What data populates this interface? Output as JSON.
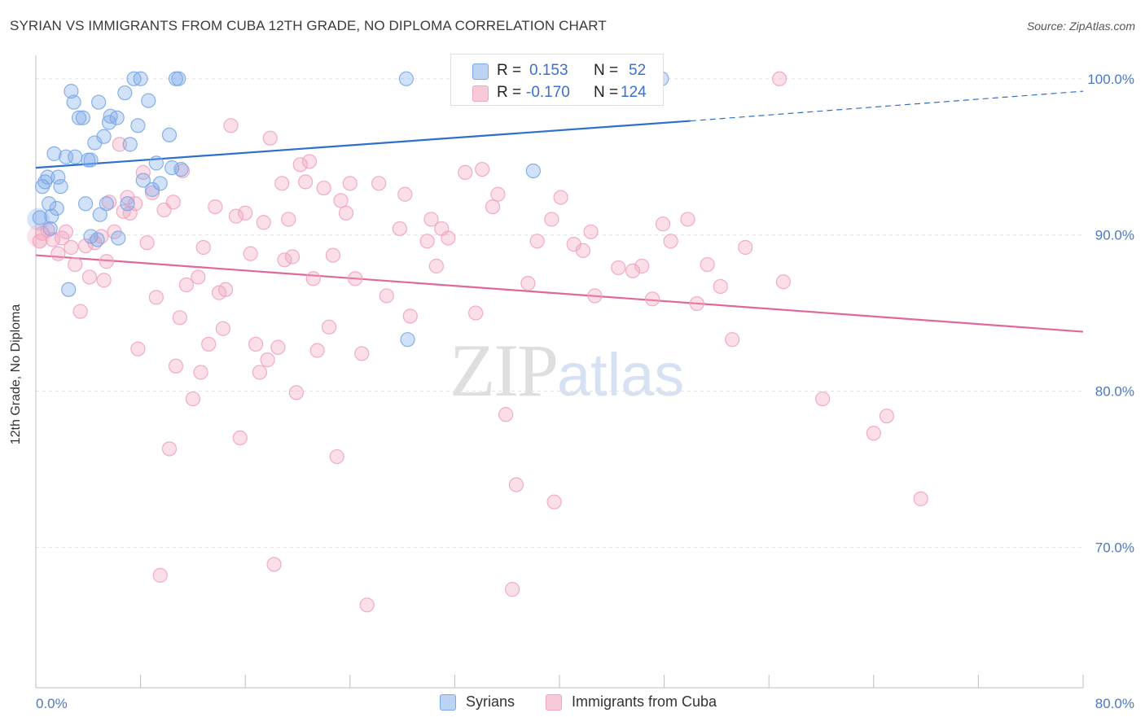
{
  "title": "SYRIAN VS IMMIGRANTS FROM CUBA 12TH GRADE, NO DIPLOMA CORRELATION CHART",
  "source": "Source: ZipAtlas.com",
  "watermark": {
    "zip": "ZIP",
    "atlas": "atlas"
  },
  "stats": {
    "row1": {
      "r_label": "R =",
      "r_value": "0.153",
      "n_label": "N =",
      "n_value": "52"
    },
    "row2": {
      "r_label": "R =",
      "r_value": "-0.170",
      "n_label": "N =",
      "n_value": "124"
    }
  },
  "legend": {
    "series1": "Syrians",
    "series2": "Immigrants from Cuba"
  },
  "chart_data": {
    "type": "scatter",
    "title": "SYRIAN VS IMMIGRANTS FROM CUBA 12TH GRADE, NO DIPLOMA CORRELATION CHART",
    "xlabel": "",
    "ylabel": "12th Grade, No Diploma",
    "xlim": [
      0,
      80
    ],
    "ylim": [
      61,
      101.5
    ],
    "x_tick_labels": [
      "0.0%",
      "80.0%"
    ],
    "y_ticks": [
      70,
      80,
      90,
      100
    ],
    "y_tick_labels": [
      "70.0%",
      "80.0%",
      "90.0%",
      "100.0%"
    ],
    "grid": true,
    "legend_position": "bottom-center",
    "colors": {
      "syrians": "#7aa8e8",
      "cuba": "#f2a3bd",
      "syrians_line": "#2f6fcc",
      "cuba_line": "#e0679a"
    },
    "series": [
      {
        "name": "Syrians",
        "trend": {
          "x0": 0,
          "y0": 94.3,
          "x1": 50,
          "y1": 97.3,
          "dashed_to": 80,
          "dashed_y": 99.2
        },
        "points": [
          [
            0.3,
            91.1
          ],
          [
            0.5,
            93.1
          ],
          [
            0.7,
            93.4
          ],
          [
            0.9,
            93.7
          ],
          [
            1.0,
            92.0
          ],
          [
            1.2,
            91.2
          ],
          [
            1.4,
            95.2
          ],
          [
            1.6,
            91.7
          ],
          [
            1.7,
            93.7
          ],
          [
            1.9,
            93.1
          ],
          [
            2.3,
            95.0
          ],
          [
            2.7,
            99.2
          ],
          [
            2.9,
            98.5
          ],
          [
            3.0,
            95.0
          ],
          [
            3.3,
            97.5
          ],
          [
            3.6,
            97.5
          ],
          [
            3.8,
            92.0
          ],
          [
            4.0,
            94.8
          ],
          [
            4.2,
            94.8
          ],
          [
            4.5,
            95.9
          ],
          [
            4.7,
            89.7
          ],
          [
            4.8,
            98.5
          ],
          [
            4.9,
            91.3
          ],
          [
            5.2,
            96.3
          ],
          [
            5.4,
            92.0
          ],
          [
            5.6,
            97.2
          ],
          [
            5.7,
            97.6
          ],
          [
            6.2,
            97.5
          ],
          [
            6.3,
            89.8
          ],
          [
            6.8,
            99.1
          ],
          [
            7.0,
            92.0
          ],
          [
            7.2,
            95.8
          ],
          [
            7.5,
            100.0
          ],
          [
            7.8,
            97.0
          ],
          [
            8.2,
            93.5
          ],
          [
            8.6,
            98.6
          ],
          [
            8.9,
            92.9
          ],
          [
            9.2,
            94.6
          ],
          [
            9.5,
            93.3
          ],
          [
            10.2,
            96.4
          ],
          [
            10.4,
            94.3
          ],
          [
            10.7,
            100.0
          ],
          [
            10.9,
            100.0
          ],
          [
            11.1,
            94.2
          ],
          [
            2.5,
            86.5
          ],
          [
            8.0,
            100.0
          ],
          [
            28.3,
            100.0
          ],
          [
            28.4,
            83.3
          ],
          [
            38.0,
            94.1
          ],
          [
            47.8,
            100.0
          ],
          [
            1.1,
            90.4
          ],
          [
            4.2,
            89.9
          ]
        ]
      },
      {
        "name": "Immigrants from Cuba",
        "trend": {
          "x0": 0,
          "y0": 88.7,
          "x1": 80,
          "y1": 83.8
        },
        "points": [
          [
            0.3,
            89.6
          ],
          [
            0.5,
            90.1
          ],
          [
            0.9,
            90.3
          ],
          [
            1.3,
            89.7
          ],
          [
            1.7,
            88.8
          ],
          [
            2.0,
            89.8
          ],
          [
            2.3,
            90.2
          ],
          [
            2.7,
            89.2
          ],
          [
            3.0,
            88.1
          ],
          [
            3.4,
            85.1
          ],
          [
            3.8,
            89.3
          ],
          [
            4.1,
            87.3
          ],
          [
            4.5,
            89.5
          ],
          [
            5.0,
            89.9
          ],
          [
            5.2,
            87.1
          ],
          [
            5.4,
            88.3
          ],
          [
            5.6,
            92.1
          ],
          [
            6.0,
            90.2
          ],
          [
            6.4,
            95.8
          ],
          [
            6.7,
            91.5
          ],
          [
            7.0,
            92.4
          ],
          [
            7.2,
            91.4
          ],
          [
            7.6,
            92.0
          ],
          [
            7.8,
            82.7
          ],
          [
            8.2,
            94.0
          ],
          [
            8.5,
            89.5
          ],
          [
            8.9,
            92.7
          ],
          [
            9.2,
            86.0
          ],
          [
            9.5,
            68.2
          ],
          [
            9.8,
            91.6
          ],
          [
            10.2,
            76.3
          ],
          [
            10.5,
            92.1
          ],
          [
            10.7,
            81.6
          ],
          [
            11.0,
            84.7
          ],
          [
            11.2,
            94.1
          ],
          [
            11.5,
            86.8
          ],
          [
            12.0,
            79.5
          ],
          [
            12.4,
            87.3
          ],
          [
            12.6,
            81.2
          ],
          [
            12.8,
            89.2
          ],
          [
            13.2,
            83.0
          ],
          [
            13.7,
            91.8
          ],
          [
            14.0,
            86.3
          ],
          [
            14.3,
            84.0
          ],
          [
            14.5,
            86.5
          ],
          [
            14.9,
            97.0
          ],
          [
            15.3,
            91.2
          ],
          [
            15.6,
            77.0
          ],
          [
            16.0,
            91.4
          ],
          [
            16.4,
            88.8
          ],
          [
            16.8,
            83.0
          ],
          [
            17.1,
            81.2
          ],
          [
            17.4,
            90.8
          ],
          [
            17.7,
            82.0
          ],
          [
            17.9,
            96.2
          ],
          [
            18.2,
            68.9
          ],
          [
            18.5,
            82.8
          ],
          [
            18.8,
            93.3
          ],
          [
            19.0,
            88.4
          ],
          [
            19.3,
            91.0
          ],
          [
            19.6,
            88.6
          ],
          [
            19.9,
            79.9
          ],
          [
            20.2,
            94.5
          ],
          [
            20.6,
            93.4
          ],
          [
            20.9,
            94.7
          ],
          [
            21.2,
            87.2
          ],
          [
            21.5,
            82.6
          ],
          [
            22.0,
            93.0
          ],
          [
            22.4,
            84.1
          ],
          [
            22.7,
            88.7
          ],
          [
            23.0,
            75.8
          ],
          [
            23.3,
            92.2
          ],
          [
            23.7,
            91.4
          ],
          [
            24.0,
            93.3
          ],
          [
            24.4,
            87.2
          ],
          [
            24.9,
            82.4
          ],
          [
            25.3,
            66.3
          ],
          [
            26.2,
            93.3
          ],
          [
            26.8,
            86.1
          ],
          [
            27.8,
            90.4
          ],
          [
            28.2,
            92.6
          ],
          [
            28.6,
            84.8
          ],
          [
            29.9,
            89.6
          ],
          [
            30.2,
            91.0
          ],
          [
            30.6,
            88.0
          ],
          [
            31.0,
            90.4
          ],
          [
            31.5,
            89.8
          ],
          [
            32.8,
            94.0
          ],
          [
            33.6,
            85.0
          ],
          [
            34.1,
            94.2
          ],
          [
            34.9,
            91.8
          ],
          [
            35.3,
            92.6
          ],
          [
            35.9,
            78.5
          ],
          [
            36.4,
            67.3
          ],
          [
            36.7,
            74.0
          ],
          [
            37.6,
            86.9
          ],
          [
            38.3,
            89.6
          ],
          [
            39.4,
            91.0
          ],
          [
            39.6,
            72.9
          ],
          [
            40.1,
            92.4
          ],
          [
            41.1,
            89.4
          ],
          [
            41.8,
            89.0
          ],
          [
            42.4,
            90.2
          ],
          [
            42.7,
            86.1
          ],
          [
            44.5,
            87.9
          ],
          [
            45.6,
            87.7
          ],
          [
            46.3,
            88.0
          ],
          [
            47.1,
            85.9
          ],
          [
            47.9,
            90.7
          ],
          [
            48.5,
            89.6
          ],
          [
            49.8,
            91.0
          ],
          [
            50.5,
            85.6
          ],
          [
            51.3,
            88.1
          ],
          [
            52.3,
            86.7
          ],
          [
            53.2,
            83.3
          ],
          [
            54.2,
            89.2
          ],
          [
            56.8,
            100.0
          ],
          [
            57.1,
            87.0
          ],
          [
            60.1,
            79.5
          ],
          [
            64.0,
            77.3
          ],
          [
            65.0,
            78.4
          ],
          [
            67.6,
            73.1
          ]
        ]
      }
    ]
  }
}
